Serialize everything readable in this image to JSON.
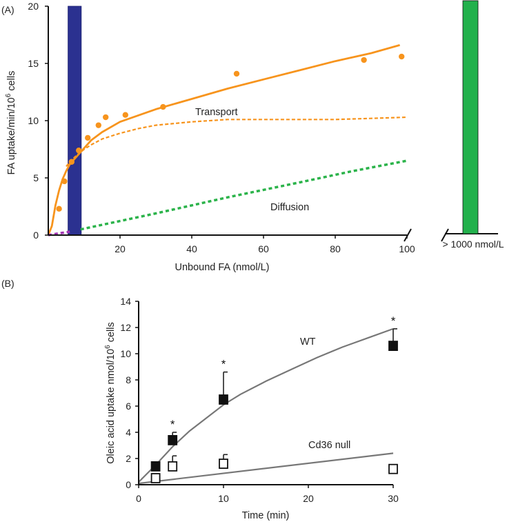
{
  "chart_data": [
    {
      "panel_label": "(A)",
      "type": "line",
      "xlabel": "Unbound FA (nmol/L)",
      "ylabel_main": "FA uptake/min/10",
      "ylabel_sup": "6",
      "ylabel_tail": " cells",
      "xlim": [
        0,
        100
      ],
      "ylim": [
        0,
        20
      ],
      "x_ticks": [
        "20",
        "40",
        "60",
        "80",
        "100"
      ],
      "y_ticks": [
        "0",
        "5",
        "10",
        "15",
        "20"
      ],
      "colors": {
        "orange": "#f7941d",
        "green": "#2bb34a",
        "blue": "#2b3190",
        "bar_green": "#22b14c",
        "purple": "#a335b3"
      },
      "annotations": {
        "transport": "Transport",
        "diffusion": "Diffusion"
      },
      "bars": [
        {
          "name": "blue-range",
          "x_start": 5.5,
          "x_end": 9.2,
          "top": 20
        }
      ],
      "break_bar": {
        "label": "> 1000 nmol/L",
        "value": 20.5
      },
      "series": [
        {
          "name": "observed",
          "style": "points",
          "points": [
            [
              3,
              2.3
            ],
            [
              4.5,
              4.7
            ],
            [
              6.5,
              6.4
            ],
            [
              8.5,
              7.4
            ],
            [
              11,
              8.5
            ],
            [
              14,
              9.6
            ],
            [
              16,
              10.3
            ],
            [
              21.5,
              10.5
            ],
            [
              32,
              11.2
            ],
            [
              52.5,
              14.1
            ],
            [
              88,
              15.3
            ],
            [
              98.5,
              15.6
            ]
          ]
        },
        {
          "name": "total fit",
          "style": "solid",
          "points": [
            [
              0,
              0
            ],
            [
              1,
              0.8
            ],
            [
              2,
              2.6
            ],
            [
              3,
              3.9
            ],
            [
              4,
              4.9
            ],
            [
              5,
              5.6
            ],
            [
              6,
              6.2
            ],
            [
              8,
              6.9
            ],
            [
              10,
              7.6
            ],
            [
              12,
              8.3
            ],
            [
              15,
              9.0
            ],
            [
              20,
              9.9
            ],
            [
              30,
              11.0
            ],
            [
              40,
              11.9
            ],
            [
              50,
              12.8
            ],
            [
              60,
              13.6
            ],
            [
              70,
              14.4
            ],
            [
              80,
              15.2
            ],
            [
              90,
              15.9
            ],
            [
              98,
              16.6
            ]
          ]
        },
        {
          "name": "Transport",
          "style": "dashed",
          "points": [
            [
              5,
              6.0
            ],
            [
              6,
              6.4
            ],
            [
              8,
              7.0
            ],
            [
              10,
              7.5
            ],
            [
              12,
              7.9
            ],
            [
              15,
              8.4
            ],
            [
              20,
              8.9
            ],
            [
              25,
              9.3
            ],
            [
              30,
              9.6
            ],
            [
              40,
              9.9
            ],
            [
              50,
              10.1
            ],
            [
              60,
              10.1
            ],
            [
              70,
              10.1
            ],
            [
              80,
              10.1
            ],
            [
              90,
              10.2
            ],
            [
              100,
              10.3
            ]
          ]
        },
        {
          "name": "Diffusion",
          "style": "dotted",
          "points": [
            [
              9,
              0.5
            ],
            [
              30,
              1.9
            ],
            [
              50,
              3.3
            ],
            [
              70,
              4.6
            ],
            [
              85,
              5.6
            ],
            [
              100,
              6.5
            ]
          ]
        },
        {
          "name": "low-range",
          "style": "dotted",
          "points": [
            [
              0,
              0
            ],
            [
              3,
              0.15
            ],
            [
              6,
              0.3
            ]
          ]
        }
      ]
    },
    {
      "panel_label": "(B)",
      "type": "scatter",
      "xlabel": "Time (min)",
      "ylabel_main": "Oleic acid uptake nmol/10",
      "ylabel_sup": "6",
      "ylabel_tail": " cells",
      "xlim": [
        0,
        30
      ],
      "ylim": [
        0,
        14
      ],
      "x_ticks": [
        "0",
        "10",
        "20",
        "30"
      ],
      "y_ticks": [
        "0",
        "2",
        "4",
        "6",
        "8",
        "10",
        "12",
        "14"
      ],
      "series": [
        {
          "name": "WT",
          "marker": "filled-square",
          "x": [
            2,
            4,
            10,
            30
          ],
          "y": [
            1.4,
            3.4,
            6.5,
            10.6
          ],
          "error": [
            0.1,
            0.6,
            2.1,
            1.3
          ],
          "significance": [
            "",
            "*",
            "*",
            "*"
          ],
          "fit": [
            [
              0,
              0.2
            ],
            [
              2,
              1.5
            ],
            [
              4,
              2.9
            ],
            [
              6,
              4.1
            ],
            [
              8,
              5.1
            ],
            [
              10,
              6.1
            ],
            [
              12,
              6.9
            ],
            [
              15,
              7.9
            ],
            [
              18,
              8.8
            ],
            [
              21,
              9.7
            ],
            [
              24,
              10.5
            ],
            [
              27,
              11.2
            ],
            [
              30,
              11.9
            ]
          ]
        },
        {
          "name": "Cd36 null",
          "marker": "open-square",
          "x": [
            2,
            4,
            10,
            30
          ],
          "y": [
            0.5,
            1.4,
            1.6,
            1.2
          ],
          "error": [
            0.2,
            0.8,
            0.7,
            0.2
          ],
          "fit": [
            [
              0,
              0.1
            ],
            [
              30,
              2.4
            ]
          ]
        }
      ]
    }
  ]
}
